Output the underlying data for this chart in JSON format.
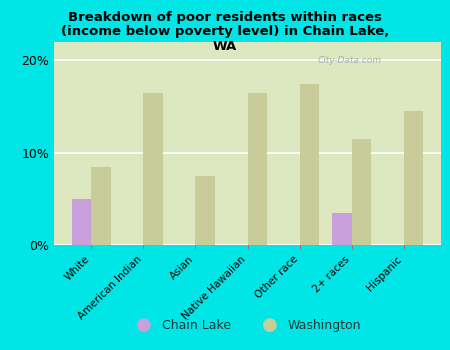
{
  "title": "Breakdown of poor residents within races\n(income below poverty level) in Chain Lake,\nWA",
  "categories": [
    "White",
    "American Indian",
    "Asian",
    "Native Hawaiian",
    "Other race",
    "2+ races",
    "Hispanic"
  ],
  "chain_lake": [
    5.0,
    0.0,
    0.0,
    0.0,
    0.0,
    3.5,
    0.0
  ],
  "washington": [
    8.5,
    16.5,
    7.5,
    16.5,
    17.5,
    11.5,
    14.5
  ],
  "chain_lake_color": "#c9a0dc",
  "washington_color": "#c8cc99",
  "bg_color": "#00e5e5",
  "plot_bg_color": "#dde8c0",
  "watermark": "City-Data.com",
  "ylim": [
    0,
    22
  ],
  "yticks": [
    0,
    10,
    20
  ],
  "bar_width": 0.38,
  "legend_labels": [
    "Chain Lake",
    "Washington"
  ]
}
